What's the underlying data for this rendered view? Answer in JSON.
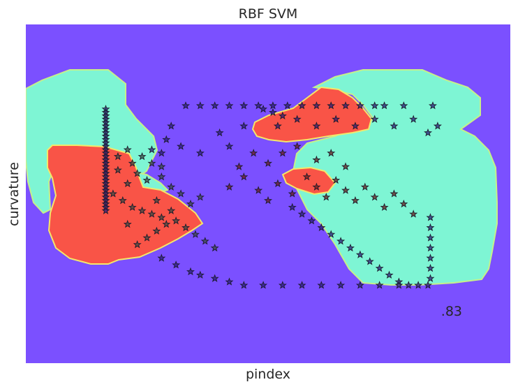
{
  "chart_data": {
    "type": "scatter",
    "title": "RBF SVM",
    "xlabel": "pindex",
    "ylabel": "curvature",
    "xlim": [
      0,
      1
    ],
    "ylim": [
      0,
      1
    ],
    "xticks": [],
    "yticks": [],
    "grid": false,
    "legend": "none",
    "marker": "star",
    "score": ".83",
    "decision_regions": {
      "background": "#7b50ff",
      "region_a": "#7ef5d4",
      "region_b": "#f95447"
    },
    "point_colors": {
      "class_0": "#2a1a78",
      "class_1": "#3a4a40",
      "class_2": "#6a1a1a",
      "edge": "#1c1c2c"
    },
    "series": [
      {
        "values": [
          [
            0.165,
            0.75
          ],
          [
            0.165,
            0.74
          ],
          [
            0.165,
            0.73
          ],
          [
            0.165,
            0.72
          ],
          [
            0.165,
            0.71
          ],
          [
            0.165,
            0.7
          ],
          [
            0.165,
            0.69
          ],
          [
            0.165,
            0.68
          ],
          [
            0.165,
            0.67
          ],
          [
            0.165,
            0.66
          ],
          [
            0.165,
            0.65
          ],
          [
            0.165,
            0.64
          ],
          [
            0.165,
            0.63
          ],
          [
            0.165,
            0.62
          ],
          [
            0.165,
            0.61
          ],
          [
            0.165,
            0.6
          ],
          [
            0.165,
            0.59
          ],
          [
            0.165,
            0.58
          ],
          [
            0.165,
            0.57
          ],
          [
            0.165,
            0.56
          ],
          [
            0.165,
            0.55
          ],
          [
            0.165,
            0.54
          ],
          [
            0.165,
            0.53
          ],
          [
            0.165,
            0.52
          ],
          [
            0.165,
            0.51
          ],
          [
            0.165,
            0.5
          ],
          [
            0.165,
            0.49
          ],
          [
            0.165,
            0.48
          ],
          [
            0.165,
            0.47
          ],
          [
            0.165,
            0.46
          ],
          [
            0.165,
            0.45
          ],
          [
            0.33,
            0.76
          ],
          [
            0.36,
            0.76
          ],
          [
            0.39,
            0.76
          ],
          [
            0.42,
            0.76
          ],
          [
            0.45,
            0.76
          ],
          [
            0.48,
            0.76
          ],
          [
            0.51,
            0.76
          ],
          [
            0.54,
            0.76
          ],
          [
            0.57,
            0.76
          ],
          [
            0.6,
            0.76
          ],
          [
            0.63,
            0.76
          ],
          [
            0.66,
            0.76
          ],
          [
            0.69,
            0.76
          ],
          [
            0.72,
            0.76
          ],
          [
            0.74,
            0.76
          ],
          [
            0.55,
            0.46
          ],
          [
            0.57,
            0.44
          ],
          [
            0.59,
            0.42
          ],
          [
            0.61,
            0.4
          ],
          [
            0.63,
            0.38
          ],
          [
            0.65,
            0.36
          ],
          [
            0.67,
            0.34
          ],
          [
            0.69,
            0.32
          ],
          [
            0.71,
            0.3
          ],
          [
            0.73,
            0.28
          ],
          [
            0.75,
            0.26
          ],
          [
            0.77,
            0.24
          ],
          [
            0.79,
            0.23
          ],
          [
            0.81,
            0.23
          ],
          [
            0.83,
            0.23
          ],
          [
            0.835,
            0.25
          ],
          [
            0.835,
            0.28
          ],
          [
            0.835,
            0.31
          ],
          [
            0.835,
            0.34
          ],
          [
            0.835,
            0.37
          ],
          [
            0.835,
            0.4
          ],
          [
            0.835,
            0.43
          ],
          [
            0.28,
            0.31
          ],
          [
            0.31,
            0.29
          ],
          [
            0.34,
            0.27
          ],
          [
            0.36,
            0.26
          ],
          [
            0.39,
            0.25
          ],
          [
            0.42,
            0.24
          ],
          [
            0.45,
            0.23
          ],
          [
            0.49,
            0.23
          ],
          [
            0.53,
            0.23
          ],
          [
            0.57,
            0.23
          ],
          [
            0.61,
            0.23
          ],
          [
            0.65,
            0.23
          ],
          [
            0.69,
            0.23
          ],
          [
            0.73,
            0.23
          ],
          [
            0.77,
            0.23
          ],
          [
            0.49,
            0.75
          ],
          [
            0.51,
            0.74
          ],
          [
            0.53,
            0.73
          ],
          [
            0.45,
            0.7
          ],
          [
            0.4,
            0.68
          ],
          [
            0.3,
            0.7
          ],
          [
            0.29,
            0.66
          ],
          [
            0.28,
            0.62
          ],
          [
            0.52,
            0.7
          ],
          [
            0.56,
            0.72
          ],
          [
            0.6,
            0.7
          ],
          [
            0.64,
            0.72
          ],
          [
            0.68,
            0.7
          ],
          [
            0.72,
            0.72
          ],
          [
            0.76,
            0.7
          ],
          [
            0.8,
            0.72
          ],
          [
            0.83,
            0.68
          ],
          [
            0.85,
            0.7
          ],
          [
            0.84,
            0.76
          ],
          [
            0.78,
            0.76
          ],
          [
            0.26,
            0.63
          ],
          [
            0.32,
            0.64
          ],
          [
            0.36,
            0.62
          ],
          [
            0.42,
            0.64
          ]
        ]
      },
      {
        "values": [
          [
            0.28,
            0.55
          ],
          [
            0.3,
            0.52
          ],
          [
            0.32,
            0.5
          ],
          [
            0.27,
            0.48
          ],
          [
            0.25,
            0.54
          ],
          [
            0.23,
            0.56
          ],
          [
            0.21,
            0.53
          ],
          [
            0.19,
            0.57
          ],
          [
            0.18,
            0.5
          ],
          [
            0.2,
            0.48
          ],
          [
            0.22,
            0.46
          ],
          [
            0.24,
            0.45
          ],
          [
            0.26,
            0.44
          ],
          [
            0.28,
            0.43
          ],
          [
            0.3,
            0.45
          ],
          [
            0.34,
            0.47
          ],
          [
            0.36,
            0.49
          ],
          [
            0.31,
            0.42
          ],
          [
            0.29,
            0.41
          ],
          [
            0.33,
            0.4
          ],
          [
            0.35,
            0.38
          ],
          [
            0.37,
            0.36
          ],
          [
            0.39,
            0.34
          ],
          [
            0.27,
            0.39
          ],
          [
            0.25,
            0.37
          ],
          [
            0.23,
            0.35
          ],
          [
            0.21,
            0.41
          ],
          [
            0.22,
            0.59
          ],
          [
            0.19,
            0.61
          ],
          [
            0.21,
            0.63
          ],
          [
            0.24,
            0.61
          ],
          [
            0.26,
            0.59
          ],
          [
            0.28,
            0.58
          ]
        ]
      },
      {
        "values": [
          [
            0.42,
            0.52
          ],
          [
            0.45,
            0.55
          ],
          [
            0.48,
            0.51
          ],
          [
            0.5,
            0.48
          ],
          [
            0.52,
            0.53
          ],
          [
            0.55,
            0.5
          ],
          [
            0.58,
            0.55
          ],
          [
            0.6,
            0.52
          ],
          [
            0.62,
            0.49
          ],
          [
            0.64,
            0.54
          ],
          [
            0.66,
            0.51
          ],
          [
            0.68,
            0.48
          ],
          [
            0.7,
            0.52
          ],
          [
            0.72,
            0.49
          ],
          [
            0.74,
            0.46
          ],
          [
            0.76,
            0.5
          ],
          [
            0.78,
            0.47
          ],
          [
            0.8,
            0.44
          ],
          [
            0.6,
            0.6
          ],
          [
            0.63,
            0.62
          ],
          [
            0.66,
            0.58
          ],
          [
            0.56,
            0.64
          ],
          [
            0.53,
            0.62
          ],
          [
            0.5,
            0.59
          ],
          [
            0.47,
            0.62
          ],
          [
            0.44,
            0.58
          ]
        ]
      }
    ]
  }
}
